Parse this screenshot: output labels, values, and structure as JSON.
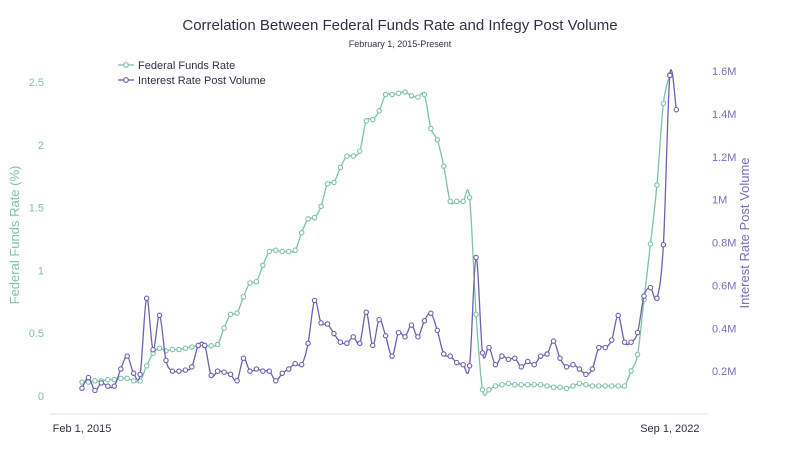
{
  "chart_data": {
    "type": "line",
    "title": "Correlation Between Federal Funds Rate and Infegy Post Volume",
    "subtitle": "February 1, 2015-Present",
    "ylabel_left": "Federal Funds Rate (%)",
    "ylabel_right": "Interest Rate Post Volume",
    "ylim_left": [
      0,
      2.6
    ],
    "ylim_right": [
      0,
      1.65
    ],
    "yticks_left": [
      "0",
      "0.5",
      "1",
      "1.5",
      "2",
      "2.5"
    ],
    "yticks_left_values": [
      0,
      0.5,
      1,
      1.5,
      2,
      2.5
    ],
    "yticks_right": [
      "0.2M",
      "0.4M",
      "0.6M",
      "0.8M",
      "1M",
      "1.2M",
      "1.4M",
      "1.6M"
    ],
    "yticks_right_values": [
      0.2,
      0.4,
      0.6,
      0.8,
      1.0,
      1.2,
      1.4,
      1.6
    ],
    "xticks": [
      "Feb 1, 2015",
      "Sep 1, 2022"
    ],
    "xticks_values": [
      "2015-02",
      "2022-09"
    ],
    "grid": false,
    "legend_placement": "top-left",
    "x": [
      "2015-02",
      "2015-03",
      "2015-04",
      "2015-05",
      "2015-06",
      "2015-07",
      "2015-08",
      "2015-09",
      "2015-10",
      "2015-11",
      "2015-12",
      "2016-01",
      "2016-02",
      "2016-03",
      "2016-04",
      "2016-05",
      "2016-06",
      "2016-07",
      "2016-08",
      "2016-09",
      "2016-10",
      "2016-11",
      "2016-12",
      "2017-01",
      "2017-02",
      "2017-03",
      "2017-04",
      "2017-05",
      "2017-06",
      "2017-07",
      "2017-08",
      "2017-09",
      "2017-10",
      "2017-11",
      "2017-12",
      "2018-01",
      "2018-02",
      "2018-03",
      "2018-04",
      "2018-05",
      "2018-06",
      "2018-07",
      "2018-08",
      "2018-09",
      "2018-10",
      "2018-11",
      "2018-12",
      "2019-01",
      "2019-02",
      "2019-03",
      "2019-04",
      "2019-05",
      "2019-06",
      "2019-07",
      "2019-08",
      "2019-09",
      "2019-10",
      "2019-11",
      "2019-12",
      "2020-01",
      "2020-02",
      "2020-03",
      "2020-04",
      "2020-05",
      "2020-06",
      "2020-07",
      "2020-08",
      "2020-09",
      "2020-10",
      "2020-11",
      "2020-12",
      "2021-01",
      "2021-02",
      "2021-03",
      "2021-04",
      "2021-05",
      "2021-06",
      "2021-07",
      "2021-08",
      "2021-09",
      "2021-10",
      "2021-11",
      "2021-12",
      "2022-01",
      "2022-02",
      "2022-03",
      "2022-04",
      "2022-05",
      "2022-06",
      "2022-07",
      "2022-08",
      "2022-09",
      "2022-10"
    ],
    "series": [
      {
        "name": "Federal Funds Rate",
        "axis": "left",
        "unit": "%",
        "color": "#7cc4a4",
        "values": [
          0.11,
          0.11,
          0.12,
          0.12,
          0.13,
          0.13,
          0.14,
          0.14,
          0.12,
          0.12,
          0.24,
          0.34,
          0.38,
          0.36,
          0.37,
          0.37,
          0.38,
          0.39,
          0.4,
          0.4,
          0.4,
          0.41,
          0.54,
          0.65,
          0.66,
          0.79,
          0.9,
          0.91,
          1.04,
          1.15,
          1.16,
          1.15,
          1.15,
          1.16,
          1.3,
          1.41,
          1.42,
          1.51,
          1.69,
          1.7,
          1.82,
          1.91,
          1.91,
          1.95,
          2.19,
          2.2,
          2.27,
          2.4,
          2.4,
          2.41,
          2.42,
          2.39,
          2.38,
          2.4,
          2.13,
          2.04,
          1.83,
          1.55,
          1.55,
          1.55,
          1.58,
          0.65,
          0.05,
          0.05,
          0.08,
          0.09,
          0.1,
          0.09,
          0.09,
          0.09,
          0.09,
          0.09,
          0.08,
          0.07,
          0.07,
          0.06,
          0.08,
          0.1,
          0.09,
          0.08,
          0.08,
          0.08,
          0.08,
          0.08,
          0.08,
          0.2,
          0.33,
          0.77,
          1.21,
          1.68,
          2.33,
          2.56,
          null
        ]
      },
      {
        "name": "Interest Rate Post Volume",
        "axis": "right",
        "unit": "M",
        "color": "#6f5fb5",
        "values": [
          0.12,
          0.17,
          0.11,
          0.145,
          0.13,
          0.13,
          0.21,
          0.27,
          0.19,
          0.185,
          0.54,
          0.3,
          0.46,
          0.25,
          0.2,
          0.2,
          0.205,
          0.22,
          0.32,
          0.32,
          0.18,
          0.2,
          0.195,
          0.185,
          0.155,
          0.26,
          0.2,
          0.21,
          0.2,
          0.2,
          0.155,
          0.19,
          0.21,
          0.235,
          0.23,
          0.33,
          0.53,
          0.425,
          0.42,
          0.375,
          0.335,
          0.33,
          0.36,
          0.33,
          0.475,
          0.32,
          0.44,
          0.365,
          0.27,
          0.38,
          0.36,
          0.415,
          0.36,
          0.435,
          0.47,
          0.39,
          0.28,
          0.27,
          0.24,
          0.23,
          0.225,
          0.73,
          0.285,
          0.31,
          0.23,
          0.27,
          0.255,
          0.26,
          0.22,
          0.245,
          0.23,
          0.27,
          0.28,
          0.34,
          0.26,
          0.22,
          0.23,
          0.21,
          0.185,
          0.21,
          0.31,
          0.31,
          0.345,
          0.46,
          0.335,
          0.335,
          0.38,
          0.55,
          0.59,
          0.54,
          0.79,
          1.58,
          1.42
        ]
      }
    ]
  }
}
